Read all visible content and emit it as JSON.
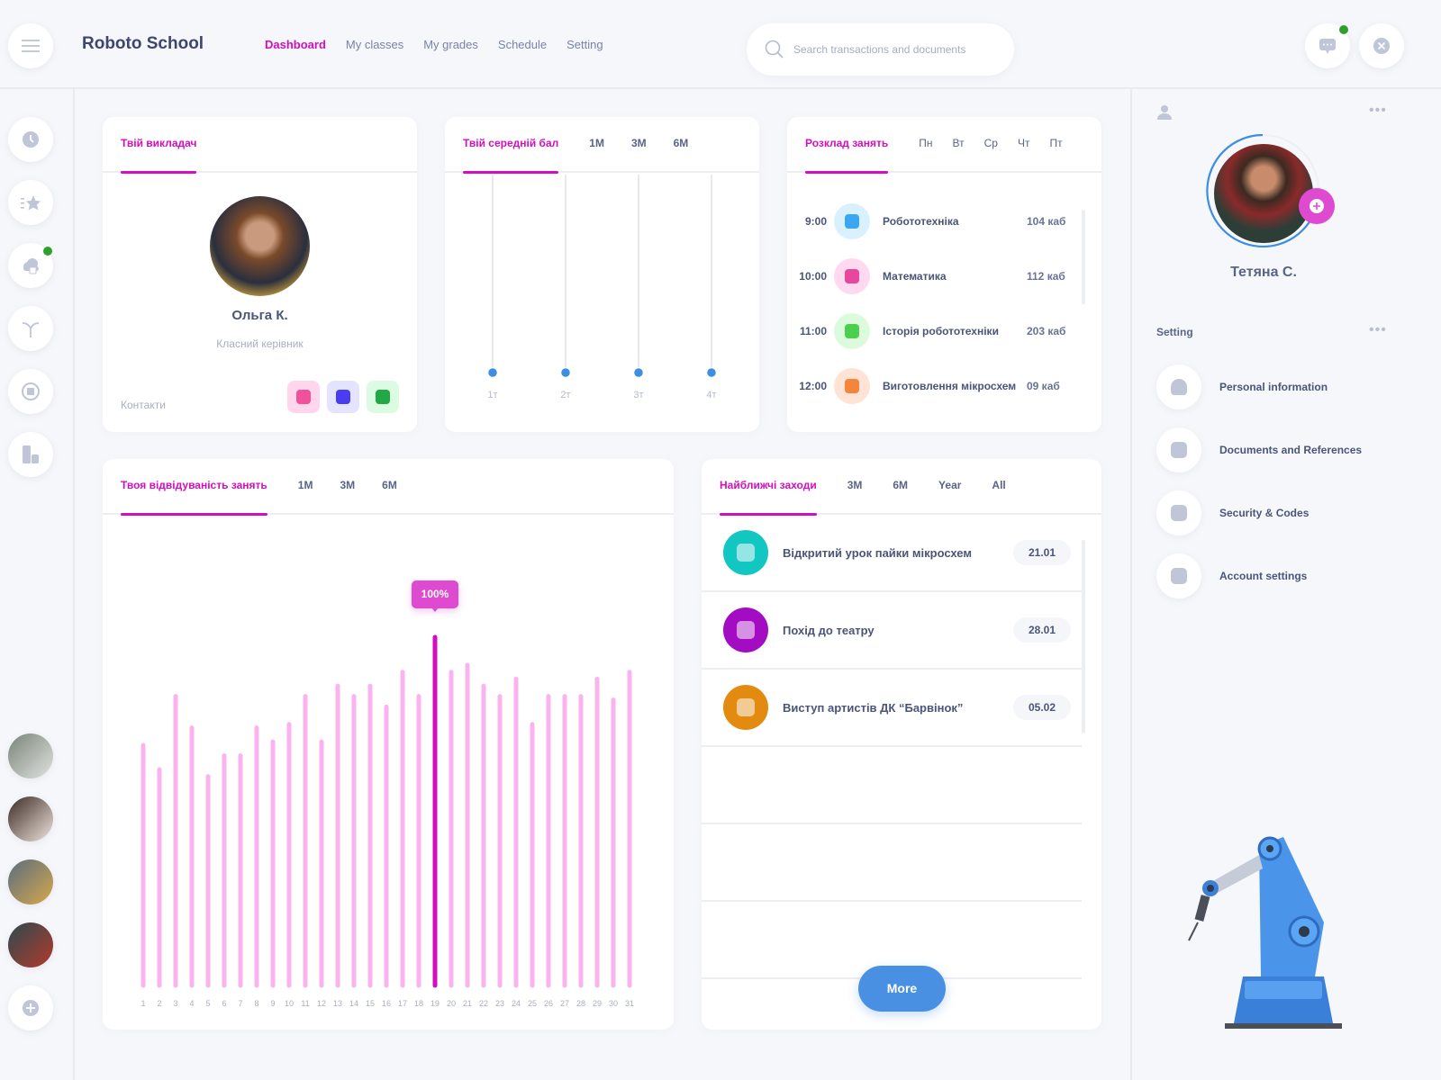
{
  "header": {
    "app_title": "Roboto School",
    "nav": [
      {
        "label": "Dashboard",
        "active": true
      },
      {
        "label": "My classes"
      },
      {
        "label": "My grades"
      },
      {
        "label": "Schedule"
      },
      {
        "label": "Setting"
      }
    ],
    "search_placeholder": "Search transactions and documents"
  },
  "sidebar": {
    "icons": [
      "clock-icon",
      "star-list-icon",
      "cloud-icon",
      "split-arrow-icon",
      "globe-icon",
      "documents-icon"
    ]
  },
  "teacher": {
    "tab": "Твій викладач",
    "name": "Ольга К.",
    "role": "Класний керівник",
    "contacts_label": "Контакти",
    "contacts": [
      {
        "icon": "instagram-icon",
        "bg": "#ffd6ec",
        "fg": "#f0509c"
      },
      {
        "icon": "facebook-icon",
        "bg": "#e4e4ff",
        "fg": "#4a3cf0"
      },
      {
        "icon": "behance-icon",
        "bg": "#dcfbe2",
        "fg": "#22a845"
      }
    ]
  },
  "grade": {
    "tabs": [
      "Твій середній бал",
      "1M",
      "3M",
      "6M"
    ],
    "chart_data": {
      "type": "line",
      "categories": [
        "1т",
        "2т",
        "3т",
        "4т"
      ],
      "values": [
        0,
        0,
        0,
        0
      ],
      "title": "Твій середній бал"
    }
  },
  "schedule": {
    "tabs": [
      "Розклад занять",
      "Пн",
      "Вт",
      "Ср",
      "Чт",
      "Пт"
    ],
    "rows": [
      {
        "time": "9:00",
        "name": "Робототехніка",
        "room": "104 каб",
        "bg": "#d9f1ff",
        "fg": "#3aa7f0",
        "icon": "android-icon"
      },
      {
        "time": "10:00",
        "name": "Математика",
        "room": "112 каб",
        "bg": "#ffd9ef",
        "fg": "#e8479e",
        "icon": "calculator-icon"
      },
      {
        "time": "11:00",
        "name": "Історія робототехніки",
        "room": "203 каб",
        "bg": "#dcfbdc",
        "fg": "#4ccf4c",
        "icon": "branch-icon"
      },
      {
        "time": "12:00",
        "name": "Виготовлення мікросхем",
        "room": "09 каб",
        "bg": "#ffe3d4",
        "fg": "#f5843c",
        "icon": "chip-icon"
      }
    ]
  },
  "attendance": {
    "tabs": [
      "Твоя відвідуваність занять",
      "1M",
      "3M",
      "6M"
    ],
    "chart_data": {
      "type": "bar",
      "title": "Твоя відвідуваність занять",
      "categories": [
        "1",
        "2",
        "3",
        "4",
        "5",
        "6",
        "7",
        "8",
        "9",
        "10",
        "11",
        "12",
        "13",
        "14",
        "15",
        "16",
        "17",
        "18",
        "19",
        "20",
        "21",
        "22",
        "23",
        "24",
        "25",
        "26",
        "27",
        "28",
        "29",
        "30",
        "31"
      ],
      "values": [
        69,
        62,
        83,
        74,
        60,
        66,
        66,
        74,
        70,
        75,
        83,
        70,
        86,
        83,
        86,
        80,
        90,
        83,
        100,
        90,
        92,
        86,
        83,
        88,
        75,
        83,
        83,
        83,
        88,
        82,
        90
      ],
      "highlight_index": 18,
      "tooltip": "100%",
      "ylim": [
        0,
        100
      ],
      "unit": "%"
    }
  },
  "events": {
    "tabs": [
      "Найближчі заходи",
      "3M",
      "6M",
      "Year",
      "All"
    ],
    "rows": [
      {
        "name": "Відкритий урок пайки мікросхем",
        "date": "21.01",
        "color": "#12c6c2",
        "icon": "chart-icon"
      },
      {
        "name": "Похід до театру",
        "date": "28.01",
        "color": "#a40cc4",
        "icon": "bar-chart-icon"
      },
      {
        "name": "Виступ артистів ДК “Барвінок”",
        "date": "05.02",
        "color": "#e38a10",
        "icon": "inbox-icon"
      }
    ],
    "more": "More"
  },
  "profile": {
    "name": "Тетяна С.",
    "settings_title": "Setting",
    "settings": [
      {
        "label": "Personal information",
        "icon": "user-icon"
      },
      {
        "label": "Documents and References",
        "icon": "document-icon"
      },
      {
        "label": "Security & Codes",
        "icon": "shield-icon"
      },
      {
        "label": "Account settings",
        "icon": "gear-icon"
      }
    ]
  },
  "colors": {
    "accent": "#d40dc0",
    "blue": "#4a90e2",
    "bar_light": "#fbb3f0"
  }
}
